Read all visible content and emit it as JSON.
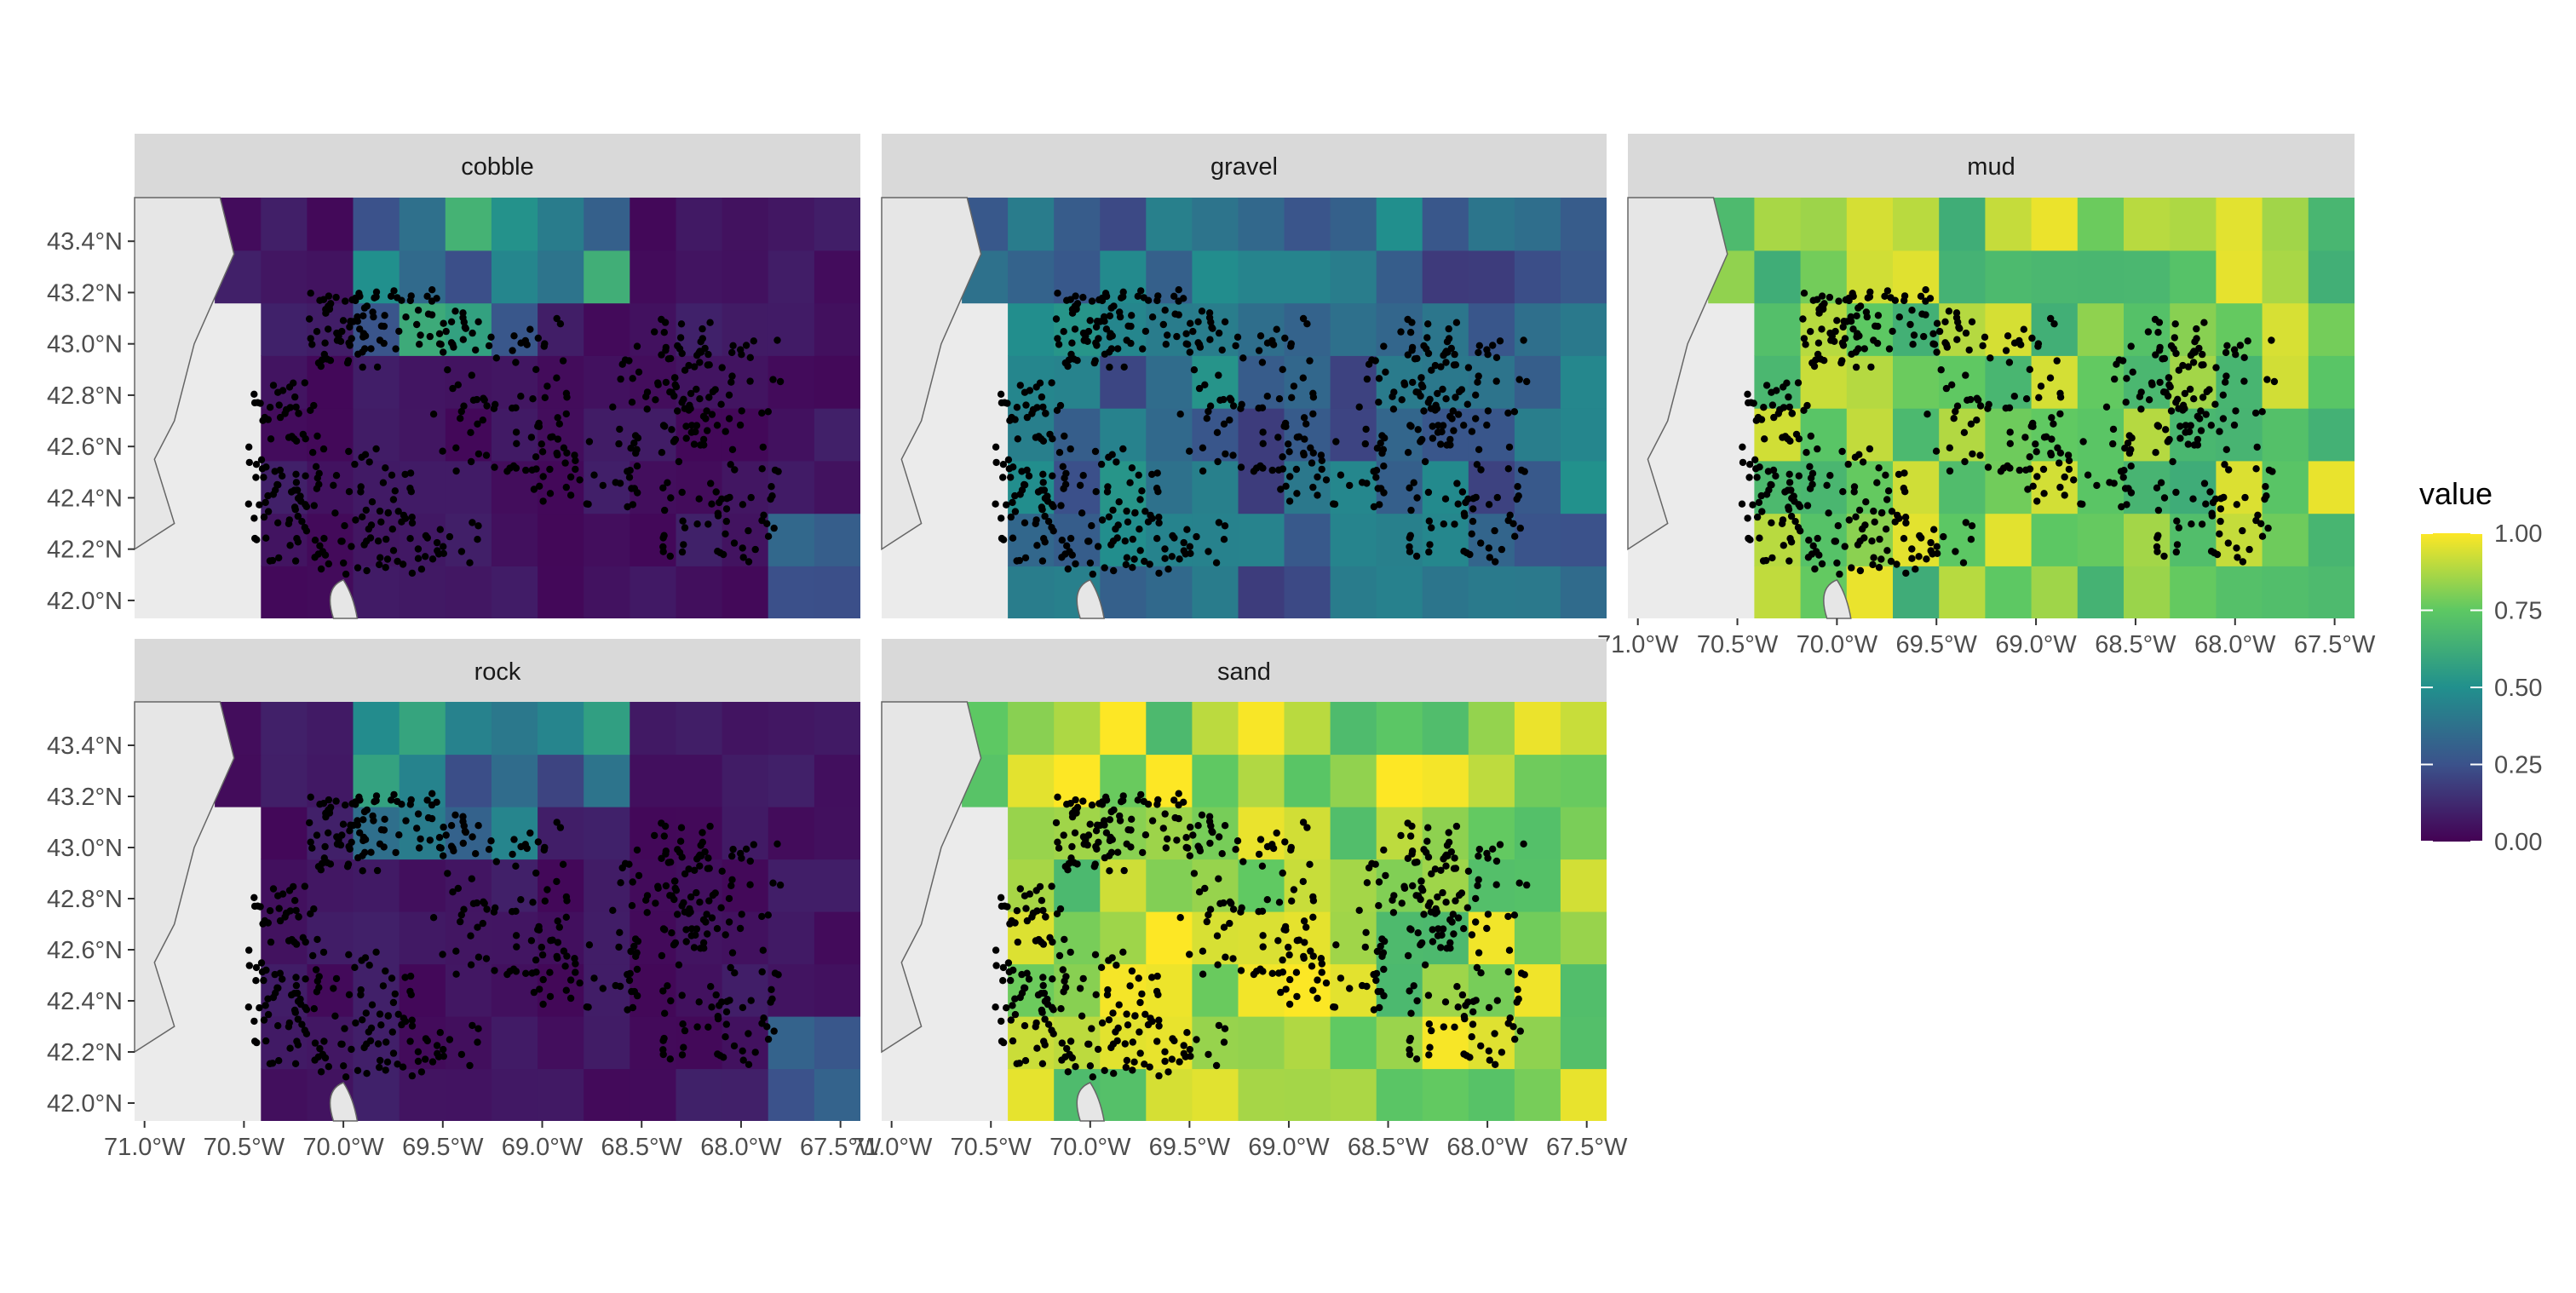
{
  "chart_data": {
    "type": "heatmap",
    "facets": [
      "cobble",
      "gravel",
      "mud",
      "rock",
      "sand"
    ],
    "x_ticks": [
      -71.0,
      -70.5,
      -70.0,
      -69.5,
      -69.0,
      -68.5,
      -68.0,
      -67.5
    ],
    "x_tick_labels": [
      "71.0°W",
      "70.5°W",
      "70.0°W",
      "69.5°W",
      "69.0°W",
      "68.5°W",
      "68.0°W",
      "67.5°W"
    ],
    "y_ticks": [
      42.0,
      42.2,
      42.4,
      42.6,
      42.8,
      43.0,
      43.2,
      43.4
    ],
    "y_tick_labels": [
      "42.0°N",
      "42.2°N",
      "42.4°N",
      "42.6°N",
      "42.8°N",
      "43.0°N",
      "43.2°N",
      "43.4°N"
    ],
    "xlim": [
      -71.05,
      -67.4
    ],
    "ylim": [
      41.93,
      43.57
    ],
    "legend": {
      "title": "value",
      "breaks": [
        "0.00",
        "0.25",
        "0.50",
        "0.75",
        "1.00"
      ],
      "placement": "right",
      "colors": [
        "#440154",
        "#3b528b",
        "#21908d",
        "#5dc863",
        "#fde725"
      ]
    },
    "mean_value": {
      "cobble": 0.05,
      "gravel": 0.35,
      "mud": 0.8,
      "rock": 0.05,
      "sand": 0.85
    },
    "grid": false,
    "points": "black dots (sampling stations) overlaid on every facet"
  }
}
